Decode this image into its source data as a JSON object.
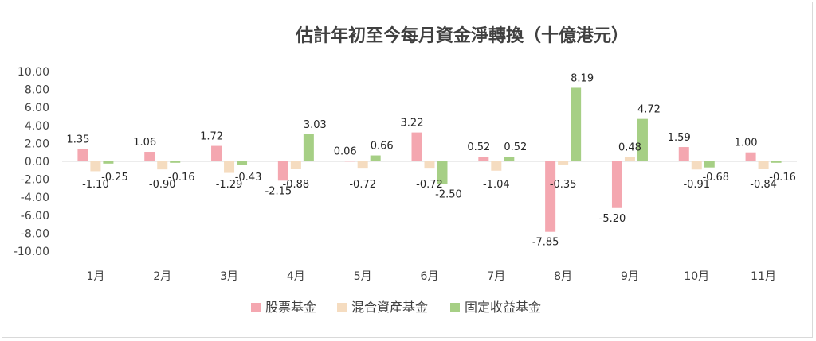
{
  "chart_data": {
    "type": "bar",
    "title": "估計年初至今每月資金淨轉換（十億港元）",
    "xlabel": "",
    "ylabel": "",
    "ylim": [
      -10,
      10
    ],
    "y_ticks": [
      "10.00",
      "8.00",
      "6.00",
      "4.00",
      "2.00",
      "0.00",
      "-2.00",
      "-4.00",
      "-6.00",
      "-8.00",
      "-10.00"
    ],
    "y_tick_values": [
      10,
      8,
      6,
      4,
      2,
      0,
      -2,
      -4,
      -6,
      -8,
      -10
    ],
    "categories": [
      "1月",
      "2月",
      "3月",
      "4月",
      "5月",
      "6月",
      "7月",
      "8月",
      "9月",
      "10月",
      "11月"
    ],
    "series": [
      {
        "name": "股票基金",
        "color": "#f4a7b0",
        "values": [
          1.35,
          1.06,
          1.72,
          -2.15,
          0.06,
          3.22,
          0.52,
          -7.85,
          -5.2,
          1.59,
          1.0
        ],
        "labels": [
          "1.35",
          "1.06",
          "1.72",
          "-2.15",
          "0.06",
          "3.22",
          "0.52",
          "-7.85",
          "-5.20",
          "1.59",
          "1.00"
        ]
      },
      {
        "name": "混合資產基金",
        "color": "#f5dcc0",
        "values": [
          -1.1,
          -0.9,
          -1.29,
          -0.88,
          -0.72,
          -0.72,
          -1.04,
          -0.35,
          0.48,
          -0.91,
          -0.84
        ],
        "labels": [
          "-1.10",
          "-0.90",
          "-1.29",
          "-0.88",
          "-0.72",
          "-0.72",
          "-1.04",
          "-0.35",
          "0.48",
          "-0.91",
          "-0.84"
        ]
      },
      {
        "name": "固定收益基金",
        "color": "#a6cf85",
        "values": [
          -0.25,
          -0.16,
          -0.43,
          3.03,
          0.66,
          -2.5,
          0.52,
          8.19,
          4.72,
          -0.68,
          -0.16
        ],
        "labels": [
          "-0.25",
          "-0.16",
          "-0.43",
          "3.03",
          "0.66",
          "-2.50",
          "0.52",
          "8.19",
          "4.72",
          "-0.68",
          "-0.16"
        ]
      }
    ],
    "grid": false,
    "legend_position": "bottom"
  }
}
